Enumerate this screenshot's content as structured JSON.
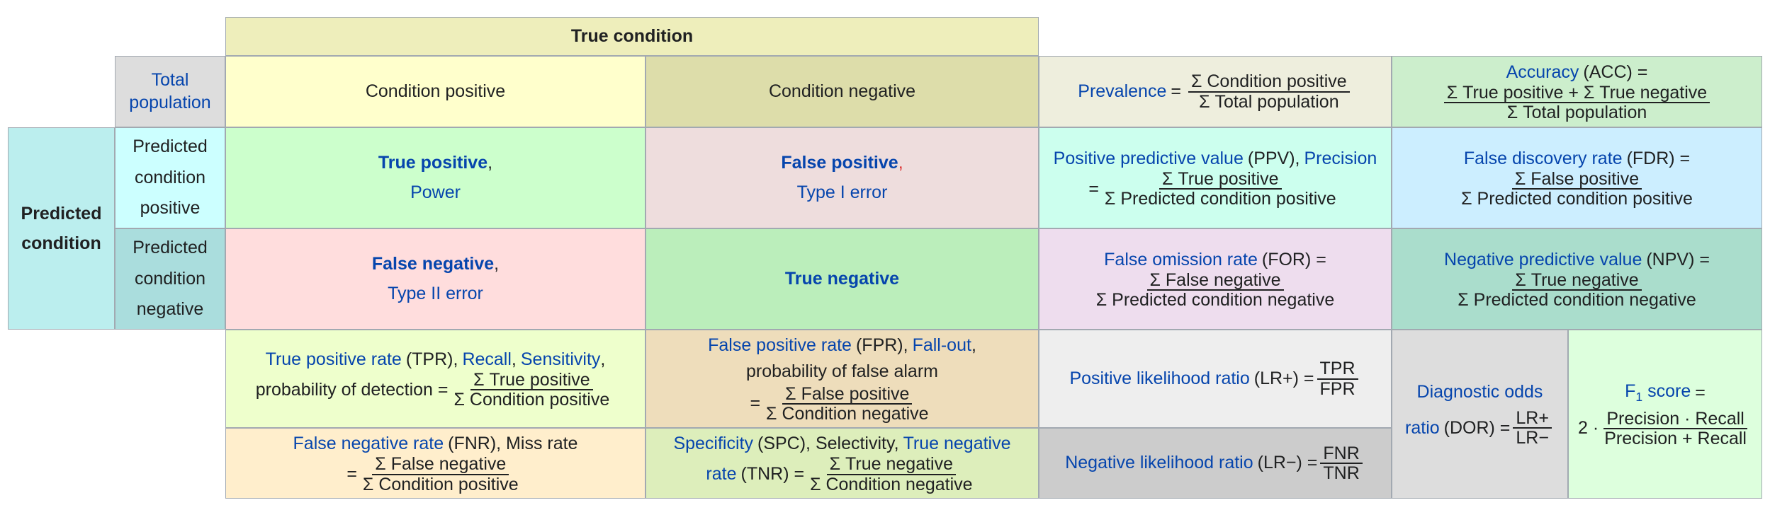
{
  "header": {
    "true_condition": "True condition",
    "total_population": "Total population",
    "condition_positive": "Condition positive",
    "condition_negative": "Condition negative",
    "predicted_condition": "Predicted condition",
    "predicted_condition_positive": "Predicted condition positive",
    "predicted_condition_negative": "Predicted condition negative"
  },
  "matrix": {
    "tp_label": "True positive",
    "tp_comma": ",",
    "tp_sub": "Power",
    "fp_label": "False positive",
    "fp_comma": ",",
    "fp_sub": "Type I error",
    "fn_label": "False negative",
    "fn_comma": ",",
    "fn_sub": "Type II error",
    "tn_label": "True negative"
  },
  "prevalence": {
    "name": "Prevalence",
    "eq": "=",
    "num": "Σ Condition positive",
    "den": "Σ Total population"
  },
  "accuracy": {
    "name": "Accuracy",
    "abbr": "(ACC) =",
    "num": "Σ True positive + Σ True negative",
    "den": "Σ Total population"
  },
  "ppv": {
    "name": "Positive predictive value",
    "abbr": "(PPV),",
    "alt": "Precision",
    "eq": "=",
    "num": "Σ True positive",
    "den": "Σ Predicted condition positive"
  },
  "fdr": {
    "name": "False discovery rate",
    "abbr": "(FDR) =",
    "num": "Σ False positive",
    "den": "Σ Predicted condition positive"
  },
  "for": {
    "name": "False omission rate",
    "abbr": "(FOR) =",
    "num": "Σ False negative",
    "den": "Σ Predicted condition negative"
  },
  "npv": {
    "name": "Negative predictive value",
    "abbr": "(NPV) =",
    "num": "Σ True negative",
    "den": "Σ Predicted condition negative"
  },
  "tpr": {
    "name": "True positive rate",
    "abbr": "(TPR),",
    "alt1": "Recall",
    "sep": ",",
    "alt2": "Sensitivity",
    "comma": ",",
    "desc": "probability of detection =",
    "num": "Σ True positive",
    "den": "Σ Condition positive"
  },
  "fpr": {
    "name": "False positive rate",
    "abbr": "(FPR),",
    "alt": "Fall-out",
    "comma": ",",
    "desc": "probability of false alarm",
    "eq": "=",
    "num": "Σ False positive",
    "den": "Σ Condition negative"
  },
  "fnr": {
    "name": "False negative rate",
    "abbr": "(FNR), Miss rate",
    "eq": "=",
    "num": "Σ False negative",
    "den": "Σ Condition positive"
  },
  "tnr": {
    "name": "Specificity",
    "abbr": "(SPC), Selectivity,",
    "alt": "True negative",
    "alt2": "rate",
    "abbr2": "(TNR) =",
    "num": "Σ True negative",
    "den": "Σ Condition negative"
  },
  "lrp": {
    "name": "Positive likelihood ratio",
    "abbr": "(LR+) =",
    "num": "TPR",
    "den": "FPR"
  },
  "lrn": {
    "name": "Negative likelihood ratio",
    "abbr": "(LR−) =",
    "num": "FNR",
    "den": "TNR"
  },
  "dor": {
    "name1": "Diagnostic odds",
    "name2": "ratio",
    "abbr": "(DOR) =",
    "num": "LR+",
    "den": "LR−"
  },
  "f1": {
    "name": "F",
    "sub": "1",
    "name2": "score",
    "eq": "=",
    "factor": "2 ·",
    "num": "Precision · Recall",
    "den": "Precision + Recall"
  },
  "colors": {
    "true_condition_bg": "#eeeebb",
    "total_pop_bg": "#dddddd",
    "cond_pos_bg": "#ffffcc",
    "cond_neg_bg": "#ddddaa",
    "predicted_bg": "#bbeeee",
    "pred_pos_bg": "#ccffff",
    "pred_neg_bg": "#aadddd",
    "tp_bg": "#ccffcc",
    "fp_bg": "#eedddd",
    "fn_bg": "#ffdddd",
    "tn_bg": "#bbeebb",
    "prevalence_bg": "#eeeedd",
    "accuracy_bg": "#cceecc",
    "ppv_bg": "#ccffee",
    "fdr_bg": "#cceeff",
    "for_bg": "#eeddee",
    "npv_bg": "#aaddcc",
    "tpr_bg": "#eeffcc",
    "fpr_bg": "#eeddbb",
    "fnr_bg": "#ffeecc",
    "tnr_bg": "#ddeebb",
    "lrp_bg": "#eeeeee",
    "lrn_bg": "#cccccc",
    "dor_bg": "#dddddd",
    "f1_bg": "#ddffdd",
    "link": "#0645ad"
  }
}
